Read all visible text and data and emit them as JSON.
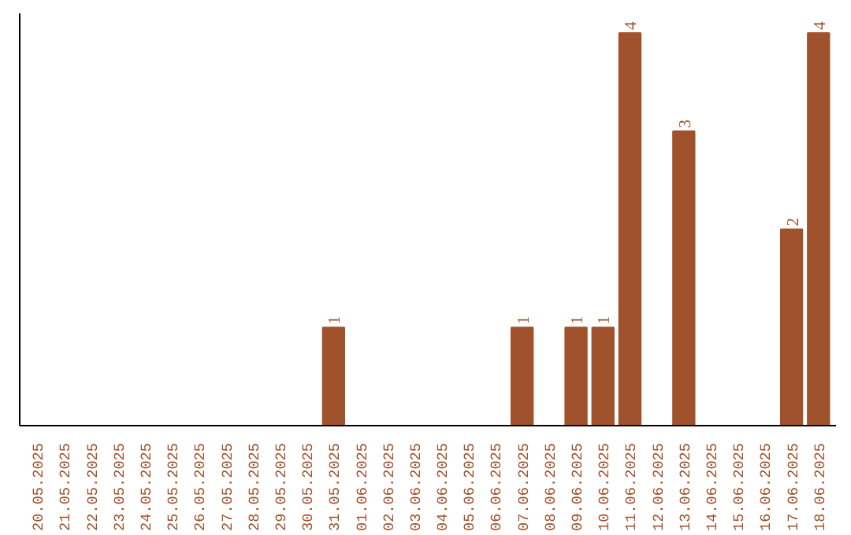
{
  "chart_data": {
    "type": "bar",
    "categories": [
      "20.05.2025",
      "21.05.2025",
      "22.05.2025",
      "23.05.2025",
      "24.05.2025",
      "25.05.2025",
      "26.05.2025",
      "27.05.2025",
      "28.05.2025",
      "29.05.2025",
      "30.05.2025",
      "31.05.2025",
      "01.06.2025",
      "02.06.2025",
      "03.06.2025",
      "04.06.2025",
      "05.06.2025",
      "06.06.2025",
      "07.06.2025",
      "08.06.2025",
      "09.06.2025",
      "10.06.2025",
      "11.06.2025",
      "12.06.2025",
      "13.06.2025",
      "14.06.2025",
      "15.06.2025",
      "16.06.2025",
      "17.06.2025",
      "18.06.2025"
    ],
    "values": [
      0,
      0,
      0,
      0,
      0,
      0,
      0,
      0,
      0,
      0,
      0,
      1,
      0,
      0,
      0,
      0,
      0,
      0,
      1,
      0,
      1,
      1,
      4,
      0,
      3,
      0,
      0,
      0,
      2,
      4
    ],
    "value_labels": [
      null,
      null,
      null,
      null,
      null,
      null,
      null,
      null,
      null,
      null,
      null,
      "1",
      null,
      null,
      null,
      null,
      null,
      null,
      "1",
      null,
      "1",
      "1",
      "4",
      null,
      "3",
      null,
      null,
      null,
      "2",
      "4"
    ],
    "color": "#a0522d",
    "tick_labels": "x"
  }
}
